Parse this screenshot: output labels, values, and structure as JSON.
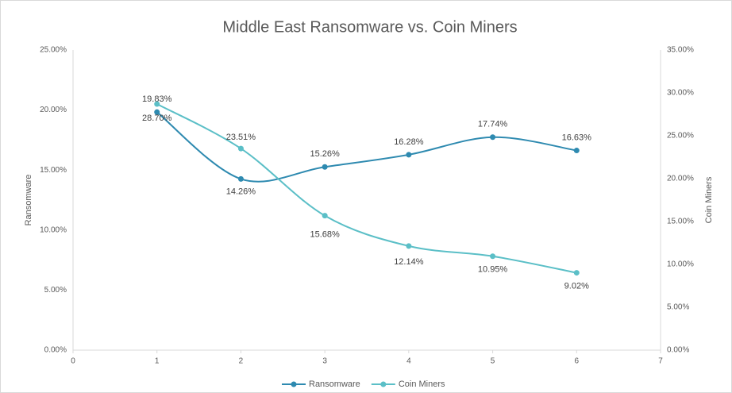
{
  "chart_data": {
    "type": "line",
    "title": "Middle East Ransomware vs. Coin Miners",
    "x": [
      1,
      2,
      3,
      4,
      5,
      6
    ],
    "xlim": [
      0,
      7
    ],
    "xticks": [
      0,
      1,
      2,
      3,
      4,
      5,
      6,
      7
    ],
    "ylabel": "Ransomware",
    "y2label": "Coin Miners",
    "ylim": [
      0,
      25
    ],
    "yticks": [
      {
        "value": 0,
        "label": "0.00%"
      },
      {
        "value": 5,
        "label": "5.00%"
      },
      {
        "value": 10,
        "label": "10.00%"
      },
      {
        "value": 15,
        "label": "15.00%"
      },
      {
        "value": 20,
        "label": "20.00%"
      },
      {
        "value": 25,
        "label": "25.00%"
      }
    ],
    "y2lim": [
      0,
      35
    ],
    "y2ticks": [
      {
        "value": 0,
        "label": "0.00%"
      },
      {
        "value": 5,
        "label": "5.00%"
      },
      {
        "value": 10,
        "label": "10.00%"
      },
      {
        "value": 15,
        "label": "15.00%"
      },
      {
        "value": 20,
        "label": "20.00%"
      },
      {
        "value": 25,
        "label": "25.00%"
      },
      {
        "value": 30,
        "label": "30.00%"
      },
      {
        "value": 35,
        "label": "35.00%"
      }
    ],
    "grid": false,
    "legend": "bottom",
    "smooth": true,
    "series": [
      {
        "name": "Ransomware",
        "color": "#2e8ab0",
        "values": [
          19.83,
          14.26,
          15.26,
          16.28,
          17.74,
          16.63
        ],
        "value_labels": [
          "19.83%",
          "14.26%",
          "15.26%",
          "16.28%",
          "17.74%",
          "16.63%"
        ]
      },
      {
        "name": "Coin Miners",
        "color": "#5bbfc7",
        "axis": "y2",
        "values": [
          28.7,
          23.51,
          15.68,
          12.14,
          10.95,
          9.02
        ],
        "value_labels": [
          "28.70%",
          "23.51%",
          "15.68%",
          "12.14%",
          "10.95%",
          "9.02%"
        ]
      }
    ]
  }
}
